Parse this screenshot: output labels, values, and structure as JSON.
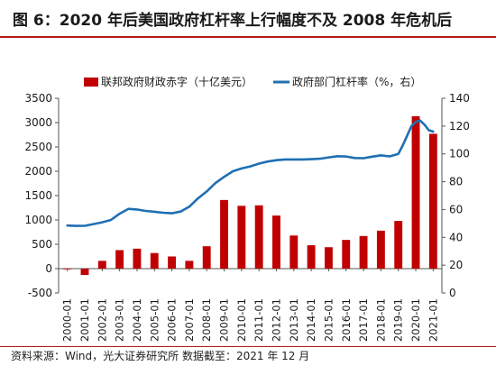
{
  "figure": {
    "title": "图 6：2020 年后美国政府杠杆率上行幅度不及 2008 年危机后",
    "source": "资料来源：Wind，光大证券研究所  数据截至：2021 年 12 月"
  },
  "colors": {
    "bar": "#c00000",
    "line": "#1f6fb2",
    "accent_rule": "#b51a1a"
  },
  "chart_data": {
    "type": "bar+line",
    "categories": [
      "2000-01",
      "2001-01",
      "2002-01",
      "2003-01",
      "2004-01",
      "2005-01",
      "2006-01",
      "2007-01",
      "2008-01",
      "2009-01",
      "2010-01",
      "2011-01",
      "2012-01",
      "2013-01",
      "2014-01",
      "2015-01",
      "2016-01",
      "2017-01",
      "2018-01",
      "2019-01",
      "2020-01",
      "2021-01"
    ],
    "legend": {
      "placement": "top",
      "entries": [
        "联邦政府财政赤字（十亿美元）",
        "政府部门杠杆率（%，右）"
      ]
    },
    "series": [
      {
        "name": "联邦政府财政赤字（十亿美元）",
        "type": "bar",
        "axis": "left",
        "values": [
          -10,
          -130,
          160,
          380,
          410,
          320,
          250,
          160,
          460,
          1410,
          1290,
          1300,
          1090,
          680,
          480,
          440,
          590,
          670,
          780,
          980,
          3130,
          2770
        ]
      },
      {
        "name": "政府部门杠杆率（%，右）",
        "type": "line",
        "axis": "right",
        "x": [
          0,
          0.5,
          1,
          1.5,
          2,
          2.5,
          3,
          3.5,
          4,
          4.5,
          5,
          5.5,
          6,
          6.5,
          7,
          7.5,
          8,
          8.5,
          9,
          9.5,
          10,
          10.5,
          11,
          11.5,
          12,
          12.5,
          13,
          13.5,
          14,
          14.5,
          15,
          15.5,
          16,
          16.5,
          17,
          17.5,
          18,
          18.5,
          19,
          19.25,
          19.5,
          19.75,
          20,
          20.25,
          20.5,
          20.75,
          21
        ],
        "values": [
          48.5,
          48.2,
          48.3,
          49.5,
          50.8,
          52.5,
          57,
          60.5,
          60,
          59,
          58.4,
          57.7,
          57.3,
          58.5,
          62,
          68,
          73,
          79,
          83.5,
          87.5,
          89.5,
          91,
          93,
          94.5,
          95.5,
          96,
          96,
          96,
          96.2,
          96.5,
          97.5,
          98.3,
          98.1,
          97,
          96.9,
          98,
          99,
          98.2,
          100,
          106,
          113,
          120,
          123,
          124,
          121,
          117,
          116
        ]
      }
    ],
    "y_left": {
      "ticks": [
        -500,
        0,
        500,
        1000,
        1500,
        2000,
        2500,
        3000,
        3500
      ],
      "ylim": [
        -500,
        3500
      ]
    },
    "y_right": {
      "ticks": [
        0,
        20,
        40,
        60,
        80,
        100,
        120,
        140
      ],
      "ylim": [
        0,
        140
      ]
    }
  }
}
